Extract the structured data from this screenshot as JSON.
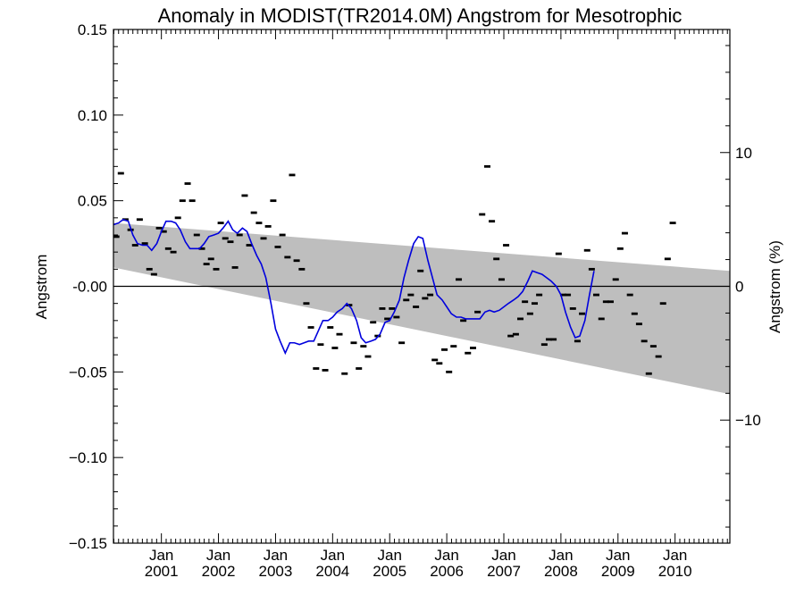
{
  "chart_data": {
    "type": "scatter",
    "title": "Anomaly in MODIST(TR2014.0M) Angstrom for Mesotrophic",
    "ylabel": "Angstrom",
    "ylabel_right": "Angstrom (%)",
    "x_tick_labels": [
      {
        "month": "Jan",
        "year": "2001",
        "t": 2001.0
      },
      {
        "month": "Jan",
        "year": "2002",
        "t": 2002.0
      },
      {
        "month": "Jan",
        "year": "2003",
        "t": 2003.0
      },
      {
        "month": "Jan",
        "year": "2004",
        "t": 2004.0
      },
      {
        "month": "Jan",
        "year": "2005",
        "t": 2005.0
      },
      {
        "month": "Jan",
        "year": "2006",
        "t": 2006.0
      },
      {
        "month": "Jan",
        "year": "2007",
        "t": 2007.0
      },
      {
        "month": "Jan",
        "year": "2008",
        "t": 2008.0
      },
      {
        "month": "Jan",
        "year": "2009",
        "t": 2009.0
      },
      {
        "month": "Jan",
        "year": "2010",
        "t": 2010.0
      }
    ],
    "xlim": [
      2000.16,
      2010.96
    ],
    "ylim": [
      -0.15,
      0.15
    ],
    "y_ticks": [
      "0.15",
      "0.10",
      "0.05",
      "-0.00",
      "−0.05",
      "−0.10",
      "−0.15"
    ],
    "y_tick_values": [
      0.15,
      0.1,
      0.05,
      0.0,
      -0.05,
      -0.1,
      -0.15
    ],
    "ylim_right": [
      -19.2,
      19.2
    ],
    "y_right_ticks": [
      "10",
      "0",
      "−10"
    ],
    "y_right_tick_values": [
      10,
      0,
      -10
    ],
    "zero_line": 0,
    "trend_band": {
      "upper": [
        [
          2000.16,
          0.037
        ],
        [
          2010.96,
          0.009
        ]
      ],
      "lower": [
        [
          2000.16,
          0.011
        ],
        [
          2010.96,
          -0.063
        ]
      ],
      "color": "#bebebe"
    },
    "monthly_points": [
      [
        2000.21,
        0.029
      ],
      [
        2000.29,
        0.066
      ],
      [
        2000.37,
        0.039
      ],
      [
        2000.46,
        0.033
      ],
      [
        2000.54,
        0.024
      ],
      [
        2000.62,
        0.039
      ],
      [
        2000.71,
        0.025
      ],
      [
        2000.79,
        0.01
      ],
      [
        2000.87,
        0.007
      ],
      [
        2000.96,
        0.034
      ],
      [
        2001.04,
        0.032
      ],
      [
        2001.12,
        0.022
      ],
      [
        2001.21,
        0.02
      ],
      [
        2001.29,
        0.04
      ],
      [
        2001.37,
        0.05
      ],
      [
        2001.46,
        0.06
      ],
      [
        2001.54,
        0.05
      ],
      [
        2001.62,
        0.03
      ],
      [
        2001.71,
        0.022
      ],
      [
        2001.79,
        0.013
      ],
      [
        2001.87,
        0.016
      ],
      [
        2001.96,
        0.01
      ],
      [
        2002.04,
        0.037
      ],
      [
        2002.12,
        0.028
      ],
      [
        2002.21,
        0.026
      ],
      [
        2002.29,
        0.011
      ],
      [
        2002.37,
        0.03
      ],
      [
        2002.46,
        0.053
      ],
      [
        2002.54,
        0.024
      ],
      [
        2002.62,
        0.043
      ],
      [
        2002.71,
        0.037
      ],
      [
        2002.79,
        0.028
      ],
      [
        2002.87,
        0.035
      ],
      [
        2002.96,
        0.05
      ],
      [
        2003.04,
        0.023
      ],
      [
        2003.12,
        0.03
      ],
      [
        2003.21,
        0.017
      ],
      [
        2003.29,
        0.065
      ],
      [
        2003.37,
        0.015
      ],
      [
        2003.46,
        0.01
      ],
      [
        2003.54,
        -0.01
      ],
      [
        2003.62,
        -0.024
      ],
      [
        2003.71,
        -0.048
      ],
      [
        2003.79,
        -0.034
      ],
      [
        2003.87,
        -0.049
      ],
      [
        2003.96,
        -0.024
      ],
      [
        2004.04,
        -0.036
      ],
      [
        2004.12,
        -0.028
      ],
      [
        2004.21,
        -0.051
      ],
      [
        2004.29,
        -0.011
      ],
      [
        2004.37,
        -0.033
      ],
      [
        2004.46,
        -0.048
      ],
      [
        2004.54,
        -0.035
      ],
      [
        2004.62,
        -0.041
      ],
      [
        2004.71,
        -0.021
      ],
      [
        2004.79,
        -0.029
      ],
      [
        2004.87,
        -0.013
      ],
      [
        2004.96,
        -0.019
      ],
      [
        2005.04,
        -0.013
      ],
      [
        2005.12,
        -0.018
      ],
      [
        2005.21,
        -0.033
      ],
      [
        2005.29,
        -0.008
      ],
      [
        2005.37,
        -0.005
      ],
      [
        2005.46,
        -0.012
      ],
      [
        2005.54,
        0.009
      ],
      [
        2005.62,
        -0.007
      ],
      [
        2005.71,
        -0.005
      ],
      [
        2005.79,
        -0.043
      ],
      [
        2005.87,
        -0.045
      ],
      [
        2005.96,
        -0.037
      ],
      [
        2006.04,
        -0.05
      ],
      [
        2006.12,
        -0.035
      ],
      [
        2006.21,
        0.004
      ],
      [
        2006.29,
        -0.02
      ],
      [
        2006.37,
        -0.039
      ],
      [
        2006.46,
        -0.036
      ],
      [
        2006.54,
        -0.015
      ],
      [
        2006.62,
        0.042
      ],
      [
        2006.71,
        0.07
      ],
      [
        2006.79,
        0.038
      ],
      [
        2006.87,
        0.016
      ],
      [
        2006.96,
        0.004
      ],
      [
        2007.04,
        0.024
      ],
      [
        2007.12,
        -0.029
      ],
      [
        2007.21,
        -0.028
      ],
      [
        2007.29,
        -0.019
      ],
      [
        2007.37,
        -0.009
      ],
      [
        2007.46,
        -0.016
      ],
      [
        2007.54,
        -0.01
      ],
      [
        2007.62,
        -0.005
      ],
      [
        2007.71,
        -0.034
      ],
      [
        2007.79,
        -0.031
      ],
      [
        2007.87,
        -0.031
      ],
      [
        2007.96,
        0.019
      ],
      [
        2008.04,
        -0.005
      ],
      [
        2008.12,
        -0.005
      ],
      [
        2008.21,
        -0.013
      ],
      [
        2008.29,
        -0.032
      ],
      [
        2008.37,
        -0.016
      ],
      [
        2008.46,
        0.021
      ],
      [
        2008.54,
        0.01
      ],
      [
        2008.62,
        -0.005
      ],
      [
        2008.71,
        -0.019
      ],
      [
        2008.79,
        -0.009
      ],
      [
        2008.87,
        -0.009
      ],
      [
        2008.96,
        0.004
      ],
      [
        2009.04,
        0.022
      ],
      [
        2009.12,
        0.031
      ],
      [
        2009.21,
        -0.005
      ],
      [
        2009.29,
        -0.016
      ],
      [
        2009.37,
        -0.022
      ],
      [
        2009.46,
        -0.032
      ],
      [
        2009.54,
        -0.051
      ],
      [
        2009.62,
        -0.035
      ],
      [
        2009.71,
        -0.041
      ],
      [
        2009.79,
        -0.01
      ],
      [
        2009.87,
        0.016
      ],
      [
        2009.96,
        0.037
      ]
    ],
    "smoothed_series": {
      "color": "#0000dd",
      "points": [
        [
          2000.16,
          0.036
        ],
        [
          2000.25,
          0.037
        ],
        [
          2000.33,
          0.039
        ],
        [
          2000.42,
          0.038
        ],
        [
          2000.5,
          0.03
        ],
        [
          2000.58,
          0.025
        ],
        [
          2000.67,
          0.024
        ],
        [
          2000.75,
          0.024
        ],
        [
          2000.83,
          0.021
        ],
        [
          2000.92,
          0.025
        ],
        [
          2001.0,
          0.032
        ],
        [
          2001.08,
          0.038
        ],
        [
          2001.17,
          0.038
        ],
        [
          2001.25,
          0.037
        ],
        [
          2001.33,
          0.033
        ],
        [
          2001.42,
          0.026
        ],
        [
          2001.5,
          0.022
        ],
        [
          2001.58,
          0.022
        ],
        [
          2001.67,
          0.022
        ],
        [
          2001.75,
          0.025
        ],
        [
          2001.83,
          0.029
        ],
        [
          2001.92,
          0.03
        ],
        [
          2002.0,
          0.031
        ],
        [
          2002.08,
          0.034
        ],
        [
          2002.17,
          0.038
        ],
        [
          2002.25,
          0.033
        ],
        [
          2002.33,
          0.031
        ],
        [
          2002.42,
          0.034
        ],
        [
          2002.5,
          0.032
        ],
        [
          2002.58,
          0.025
        ],
        [
          2002.67,
          0.018
        ],
        [
          2002.75,
          0.013
        ],
        [
          2002.83,
          0.005
        ],
        [
          2002.92,
          -0.01
        ],
        [
          2003.0,
          -0.025
        ],
        [
          2003.08,
          -0.032
        ],
        [
          2003.17,
          -0.039
        ],
        [
          2003.25,
          -0.033
        ],
        [
          2003.33,
          -0.033
        ],
        [
          2003.42,
          -0.034
        ],
        [
          2003.5,
          -0.033
        ],
        [
          2003.58,
          -0.032
        ],
        [
          2003.67,
          -0.032
        ],
        [
          2003.75,
          -0.026
        ],
        [
          2003.83,
          -0.02
        ],
        [
          2003.92,
          -0.02
        ],
        [
          2004.0,
          -0.018
        ],
        [
          2004.08,
          -0.015
        ],
        [
          2004.17,
          -0.013
        ],
        [
          2004.25,
          -0.01
        ],
        [
          2004.33,
          -0.013
        ],
        [
          2004.42,
          -0.02
        ],
        [
          2004.5,
          -0.03
        ],
        [
          2004.58,
          -0.033
        ],
        [
          2004.67,
          -0.032
        ],
        [
          2004.75,
          -0.031
        ],
        [
          2004.83,
          -0.028
        ],
        [
          2004.92,
          -0.021
        ],
        [
          2005.0,
          -0.02
        ],
        [
          2005.08,
          -0.015
        ],
        [
          2005.17,
          -0.008
        ],
        [
          2005.25,
          0.005
        ],
        [
          2005.33,
          0.015
        ],
        [
          2005.42,
          0.025
        ],
        [
          2005.5,
          0.029
        ],
        [
          2005.58,
          0.028
        ],
        [
          2005.67,
          0.015
        ],
        [
          2005.75,
          0.005
        ],
        [
          2005.83,
          -0.005
        ],
        [
          2005.92,
          -0.008
        ],
        [
          2006.0,
          -0.012
        ],
        [
          2006.08,
          -0.016
        ],
        [
          2006.17,
          -0.018
        ],
        [
          2006.25,
          -0.018
        ],
        [
          2006.33,
          -0.019
        ],
        [
          2006.42,
          -0.019
        ],
        [
          2006.5,
          -0.019
        ],
        [
          2006.58,
          -0.019
        ],
        [
          2006.67,
          -0.015
        ],
        [
          2006.75,
          -0.014
        ],
        [
          2006.83,
          -0.015
        ],
        [
          2006.92,
          -0.014
        ],
        [
          2007.0,
          -0.012
        ],
        [
          2007.08,
          -0.01
        ],
        [
          2007.17,
          -0.008
        ],
        [
          2007.25,
          -0.006
        ],
        [
          2007.33,
          -0.003
        ],
        [
          2007.42,
          0.003
        ],
        [
          2007.5,
          0.009
        ],
        [
          2007.58,
          0.008
        ],
        [
          2007.67,
          0.007
        ],
        [
          2007.75,
          0.005
        ],
        [
          2007.83,
          0.003
        ],
        [
          2007.92,
          0.0
        ],
        [
          2008.0,
          -0.005
        ],
        [
          2008.08,
          -0.015
        ],
        [
          2008.17,
          -0.024
        ],
        [
          2008.25,
          -0.03
        ],
        [
          2008.33,
          -0.029
        ],
        [
          2008.42,
          -0.02
        ],
        [
          2008.5,
          -0.005
        ],
        [
          2008.58,
          0.009
        ]
      ]
    }
  }
}
